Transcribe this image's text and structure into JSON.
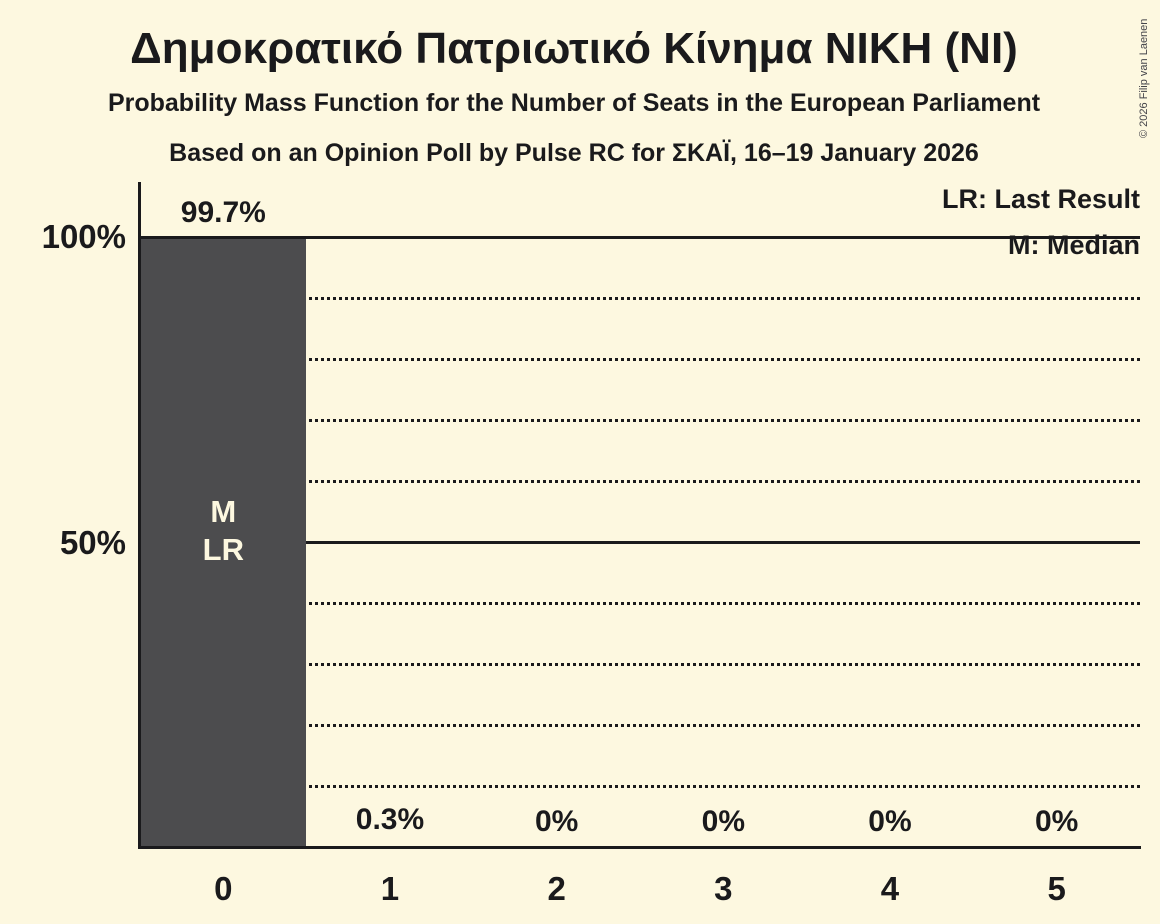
{
  "header": {
    "title": "Δημοκρατικό Πατριωτικό Κίνημα ΝΙΚΗ (ΝΙ)",
    "subtitle1": "Probability Mass Function for the Number of Seats in the European Parliament",
    "subtitle2": "Based on an Opinion Poll by Pulse RC for ΣΚΑΪ, 16–19 January 2026"
  },
  "legend": {
    "lr": "LR: Last Result",
    "m": "M: Median"
  },
  "copyright": "© 2026 Filip van Laenen",
  "colors": {
    "background": "#fdf8e0",
    "bar": "#4c4c4e",
    "text": "#1a1a1c",
    "grid": "#1a1a1c",
    "bar_label": "#fdf8e0"
  },
  "chart_data": {
    "type": "bar",
    "title": "Δημοκρατικό Πατριωτικό Κίνημα ΝΙΚΗ (ΝΙ)",
    "subtitle": "Probability Mass Function for the Number of Seats in the European Parliament",
    "source_line": "Based on an Opinion Poll by Pulse RC for ΣΚΑΪ, 16–19 January 2026",
    "xlabel": "",
    "ylabel": "",
    "ylim": [
      0,
      100
    ],
    "categories": [
      "0",
      "1",
      "2",
      "3",
      "4",
      "5"
    ],
    "values": [
      99.7,
      0.3,
      0,
      0,
      0,
      0
    ],
    "value_labels": [
      "99.7%",
      "0.3%",
      "0%",
      "0%",
      "0%",
      "0%"
    ],
    "bar_annotations": [
      [
        "M",
        "LR"
      ],
      [],
      [],
      [],
      [],
      []
    ],
    "yticks": [
      {
        "pct": 100,
        "label": "100%"
      },
      {
        "pct": 50,
        "label": "50%"
      }
    ],
    "gridlines": {
      "dotted_pcts": [
        90,
        80,
        70,
        60,
        40,
        30,
        20,
        10
      ],
      "solid_pcts": [
        100,
        50
      ]
    },
    "grid": true,
    "legend_position": "top-right",
    "legend_entries": [
      "LR: Last Result",
      "M: Median"
    ]
  }
}
